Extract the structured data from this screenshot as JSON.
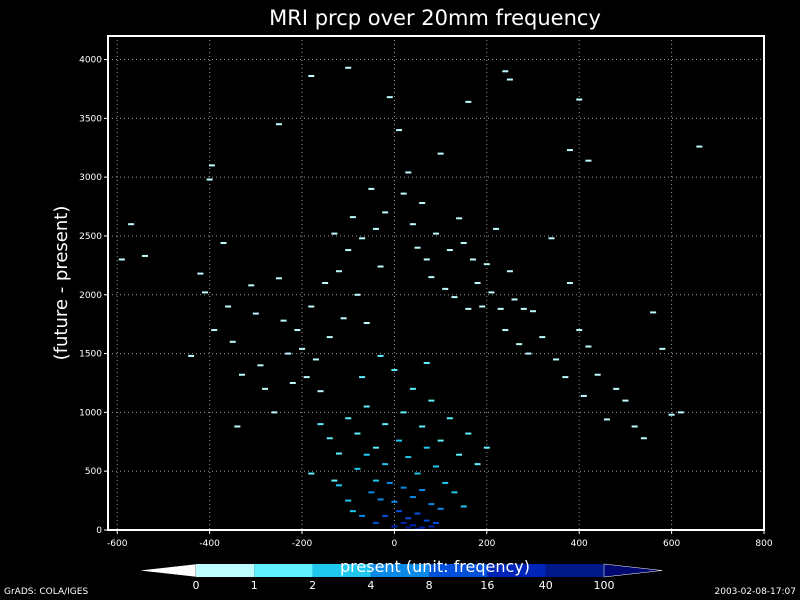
{
  "chart_data": {
    "type": "heatmap",
    "title": "MRI  prcp over 20mm  frequency",
    "xlabel": "present (unit: freqency)",
    "ylabel": "(future - present)",
    "xlim": [
      -620,
      800
    ],
    "ylim": [
      0,
      4200
    ],
    "xticks": [
      -600,
      -400,
      -200,
      0,
      200,
      400,
      600,
      800
    ],
    "yticks": [
      0,
      500,
      1000,
      1500,
      2000,
      2500,
      3000,
      3500,
      4000
    ],
    "grid": true,
    "colorbar": {
      "labels": [
        "0",
        "1",
        "2",
        "4",
        "8",
        "16",
        "40",
        "100"
      ],
      "colors": [
        "#ffffff",
        "#bffcff",
        "#60f0ff",
        "#20c8f0",
        "#0a8ae6",
        "#0050dc",
        "#0024b8",
        "#001888",
        "#000870"
      ]
    },
    "points": [
      [
        -570,
        2600,
        1
      ],
      [
        -590,
        2300,
        1
      ],
      [
        -540,
        2330,
        1
      ],
      [
        -420,
        2180,
        1
      ],
      [
        -410,
        2020,
        1
      ],
      [
        -395,
        3100,
        1
      ],
      [
        -400,
        2980,
        1
      ],
      [
        -440,
        1480,
        1
      ],
      [
        -390,
        1700,
        1
      ],
      [
        -370,
        2440,
        1
      ],
      [
        -360,
        1900,
        1
      ],
      [
        -350,
        1600,
        1
      ],
      [
        -330,
        1320,
        1
      ],
      [
        -340,
        880,
        1
      ],
      [
        -310,
        2080,
        1
      ],
      [
        -300,
        1840,
        1
      ],
      [
        -290,
        1400,
        1
      ],
      [
        -280,
        1200,
        1
      ],
      [
        -260,
        1000,
        1
      ],
      [
        -250,
        2140,
        1
      ],
      [
        -240,
        1780,
        1
      ],
      [
        -230,
        1500,
        1
      ],
      [
        -220,
        1250,
        1
      ],
      [
        -210,
        1700,
        1
      ],
      [
        -200,
        1540,
        1
      ],
      [
        -190,
        1300,
        1
      ],
      [
        -180,
        1900,
        1
      ],
      [
        -170,
        1450,
        1
      ],
      [
        -160,
        1180,
        1
      ],
      [
        -150,
        2100,
        1
      ],
      [
        -140,
        1640,
        1
      ],
      [
        -130,
        2520,
        1
      ],
      [
        -120,
        2200,
        1
      ],
      [
        -110,
        1800,
        1
      ],
      [
        -100,
        2380,
        1
      ],
      [
        -90,
        2660,
        1
      ],
      [
        -80,
        2000,
        1
      ],
      [
        -70,
        2480,
        1
      ],
      [
        -60,
        1760,
        1
      ],
      [
        -50,
        2900,
        1
      ],
      [
        -40,
        2560,
        1
      ],
      [
        -30,
        2240,
        1
      ],
      [
        -20,
        2700,
        1
      ],
      [
        -10,
        3680,
        1
      ],
      [
        10,
        3400,
        1
      ],
      [
        20,
        2860,
        1
      ],
      [
        30,
        3040,
        1
      ],
      [
        40,
        2600,
        1
      ],
      [
        50,
        2400,
        1
      ],
      [
        60,
        2780,
        1
      ],
      [
        70,
        2300,
        1
      ],
      [
        80,
        2150,
        1
      ],
      [
        90,
        2520,
        1
      ],
      [
        100,
        3200,
        1
      ],
      [
        110,
        2050,
        1
      ],
      [
        120,
        2380,
        1
      ],
      [
        130,
        1980,
        1
      ],
      [
        140,
        2650,
        1
      ],
      [
        150,
        2440,
        1
      ],
      [
        160,
        1880,
        1
      ],
      [
        170,
        2300,
        1
      ],
      [
        180,
        2100,
        1
      ],
      [
        190,
        1900,
        1
      ],
      [
        200,
        2260,
        1
      ],
      [
        210,
        2020,
        1
      ],
      [
        220,
        2560,
        1
      ],
      [
        230,
        1880,
        1
      ],
      [
        240,
        1700,
        1
      ],
      [
        250,
        2200,
        1
      ],
      [
        260,
        1960,
        1
      ],
      [
        270,
        1580,
        1
      ],
      [
        280,
        1880,
        1
      ],
      [
        290,
        1500,
        1
      ],
      [
        300,
        1860,
        1
      ],
      [
        320,
        1640,
        1
      ],
      [
        340,
        2480,
        1
      ],
      [
        350,
        1450,
        1
      ],
      [
        370,
        1300,
        1
      ],
      [
        380,
        2100,
        1
      ],
      [
        400,
        1700,
        1
      ],
      [
        410,
        1140,
        1
      ],
      [
        420,
        1560,
        1
      ],
      [
        440,
        1320,
        1
      ],
      [
        460,
        940,
        1
      ],
      [
        480,
        1200,
        1
      ],
      [
        500,
        1100,
        1
      ],
      [
        520,
        880,
        1
      ],
      [
        540,
        780,
        1
      ],
      [
        560,
        1850,
        1
      ],
      [
        580,
        1540,
        1
      ],
      [
        600,
        980,
        1
      ],
      [
        620,
        1000,
        1
      ],
      [
        660,
        3260,
        1
      ],
      [
        240,
        3900,
        1
      ],
      [
        250,
        3830,
        1
      ],
      [
        160,
        3640,
        1
      ],
      [
        -180,
        3860,
        1
      ],
      [
        -100,
        3930,
        1
      ],
      [
        420,
        3140,
        1
      ],
      [
        380,
        3230,
        1
      ],
      [
        400,
        3660,
        1
      ],
      [
        -250,
        3450,
        1
      ],
      [
        -160,
        900,
        2
      ],
      [
        -140,
        780,
        2
      ],
      [
        -120,
        650,
        2
      ],
      [
        -100,
        950,
        2
      ],
      [
        -80,
        820,
        2
      ],
      [
        -60,
        1050,
        2
      ],
      [
        -40,
        700,
        2
      ],
      [
        -20,
        900,
        2
      ],
      [
        20,
        1000,
        2
      ],
      [
        40,
        1200,
        2
      ],
      [
        60,
        880,
        2
      ],
      [
        80,
        1100,
        2
      ],
      [
        100,
        760,
        2
      ],
      [
        120,
        950,
        2
      ],
      [
        140,
        640,
        2
      ],
      [
        160,
        820,
        2
      ],
      [
        180,
        560,
        2
      ],
      [
        200,
        700,
        2
      ],
      [
        -180,
        480,
        2
      ],
      [
        -130,
        420,
        2
      ],
      [
        -70,
        1300,
        2
      ],
      [
        0,
        1360,
        2
      ],
      [
        70,
        1420,
        2
      ],
      [
        -30,
        1480,
        2
      ],
      [
        -120,
        380,
        3
      ],
      [
        -100,
        250,
        3
      ],
      [
        -80,
        520,
        3
      ],
      [
        -60,
        640,
        3
      ],
      [
        -40,
        420,
        3
      ],
      [
        -20,
        560,
        3
      ],
      [
        10,
        760,
        3
      ],
      [
        30,
        620,
        3
      ],
      [
        50,
        480,
        3
      ],
      [
        70,
        700,
        3
      ],
      [
        90,
        540,
        3
      ],
      [
        110,
        400,
        3
      ],
      [
        130,
        320,
        3
      ],
      [
        -90,
        160,
        3
      ],
      [
        150,
        200,
        3
      ],
      [
        -50,
        320,
        4
      ],
      [
        -30,
        260,
        4
      ],
      [
        -10,
        400,
        4
      ],
      [
        20,
        360,
        4
      ],
      [
        40,
        280,
        4
      ],
      [
        60,
        340,
        4
      ],
      [
        80,
        220,
        4
      ],
      [
        100,
        180,
        4
      ],
      [
        -70,
        120,
        4
      ],
      [
        0,
        240,
        4
      ],
      [
        -20,
        120,
        5
      ],
      [
        10,
        160,
        5
      ],
      [
        30,
        100,
        5
      ],
      [
        50,
        140,
        5
      ],
      [
        70,
        80,
        5
      ],
      [
        90,
        60,
        5
      ],
      [
        -40,
        60,
        5
      ],
      [
        20,
        60,
        6
      ],
      [
        40,
        40,
        6
      ],
      [
        60,
        20,
        6
      ],
      [
        0,
        30,
        6
      ],
      [
        80,
        30,
        6
      ],
      [
        30,
        20,
        7
      ],
      [
        50,
        10,
        7
      ]
    ]
  },
  "footer": {
    "left": "GrADS: COLA/IGES",
    "right": "2003-02-08-17:07"
  }
}
